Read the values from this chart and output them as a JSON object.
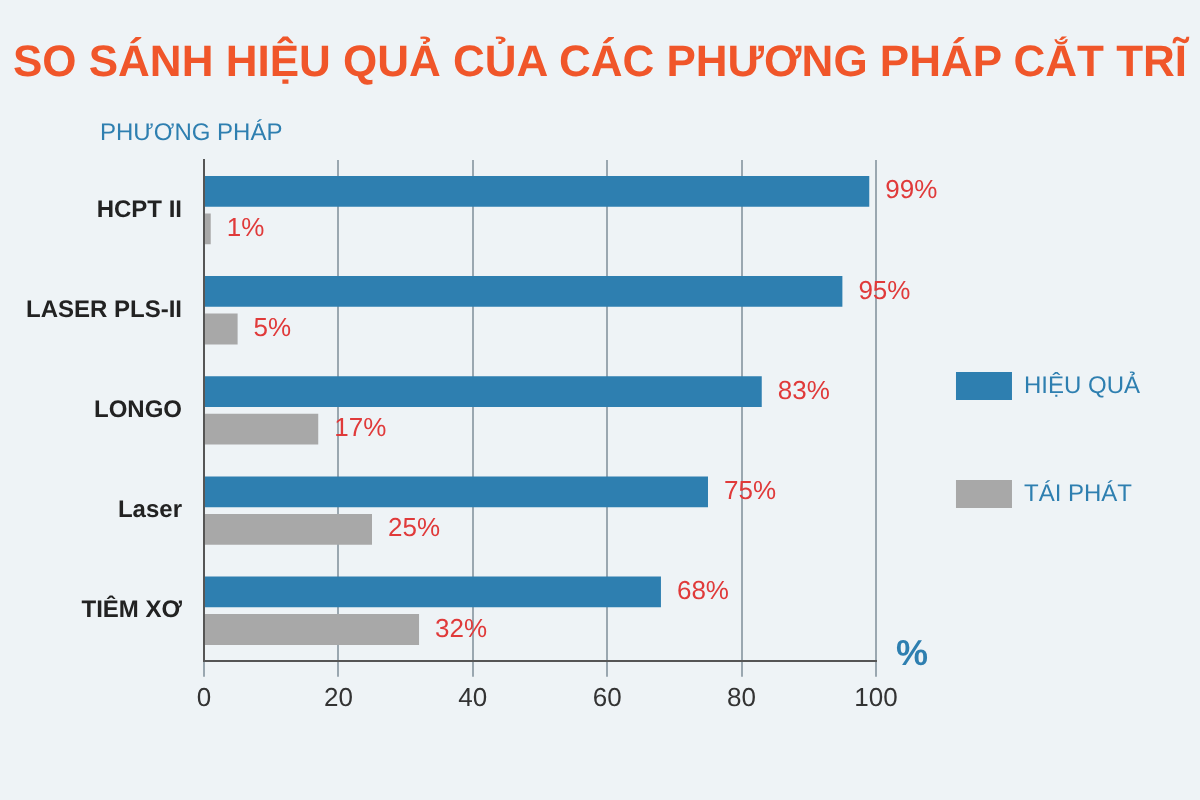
{
  "chart_data": {
    "type": "bar",
    "orientation": "horizontal",
    "title": "SO SÁNH HIỆU QUẢ CỦA CÁC PHƯƠNG PHÁP CẮT TRĨ",
    "ylabel": "PHƯƠNG PHÁP",
    "xlabel": "%",
    "categories": [
      "HCPT II",
      "LASER PLS-II",
      "LONGO",
      "Laser",
      "TIÊM XƠ"
    ],
    "series": [
      {
        "name": "HIỆU QUẢ",
        "color": "#2e7fb0",
        "values": [
          99,
          95,
          83,
          75,
          68
        ],
        "value_labels": [
          "99%",
          "95%",
          "83%",
          "75%",
          "68%"
        ]
      },
      {
        "name": "TÁI PHÁT",
        "color": "#a8a8a8",
        "values": [
          1,
          5,
          17,
          25,
          32
        ],
        "value_labels": [
          "1%",
          "5%",
          "17%",
          "25%",
          "32%"
        ]
      }
    ],
    "xlim": [
      0,
      100
    ],
    "xticks": [
      0,
      20,
      40,
      60,
      80,
      100
    ],
    "grid": "x",
    "legend": "right"
  }
}
